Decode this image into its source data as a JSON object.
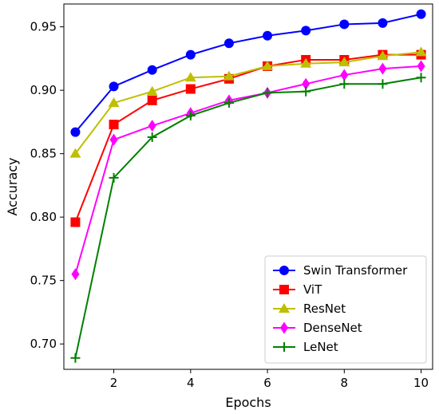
{
  "chart_data": {
    "type": "line",
    "title": "",
    "xlabel": "Epochs",
    "ylabel": "Accuracy",
    "xlim": [
      0.7,
      10.3
    ],
    "ylim": [
      0.68,
      0.968
    ],
    "xticks": [
      2,
      4,
      6,
      8,
      10
    ],
    "xtick_labels": [
      "2",
      "4",
      "6",
      "8",
      "10"
    ],
    "yticks": [
      0.7,
      0.75,
      0.8,
      0.85,
      0.9,
      0.95
    ],
    "ytick_labels": [
      "0.70",
      "0.75",
      "0.80",
      "0.85",
      "0.90",
      "0.95"
    ],
    "grid": false,
    "legend_position": "bottom-right",
    "x": [
      1,
      2,
      3,
      4,
      5,
      6,
      7,
      8,
      9,
      10
    ],
    "series": [
      {
        "name": "Swin Transformer",
        "color": "#0000ff",
        "marker": "circle",
        "values": [
          0.867,
          0.903,
          0.916,
          0.928,
          0.937,
          0.943,
          0.947,
          0.952,
          0.953,
          0.96
        ]
      },
      {
        "name": "ViT",
        "color": "#ff0000",
        "marker": "square",
        "values": [
          0.796,
          0.873,
          0.892,
          0.901,
          0.909,
          0.919,
          0.924,
          0.924,
          0.928,
          0.928
        ]
      },
      {
        "name": "ResNet",
        "color": "#bfbf00",
        "marker": "triangle",
        "values": [
          0.85,
          0.89,
          0.899,
          0.91,
          0.911,
          0.919,
          0.921,
          0.922,
          0.927,
          0.93
        ]
      },
      {
        "name": "DenseNet",
        "color": "#ff00ff",
        "marker": "diamond",
        "values": [
          0.755,
          0.861,
          0.872,
          0.882,
          0.892,
          0.898,
          0.905,
          0.912,
          0.917,
          0.919
        ]
      },
      {
        "name": "LeNet",
        "color": "#008000",
        "marker": "plus",
        "values": [
          0.689,
          0.831,
          0.863,
          0.88,
          0.89,
          0.898,
          0.899,
          0.905,
          0.905,
          0.91
        ]
      }
    ]
  }
}
